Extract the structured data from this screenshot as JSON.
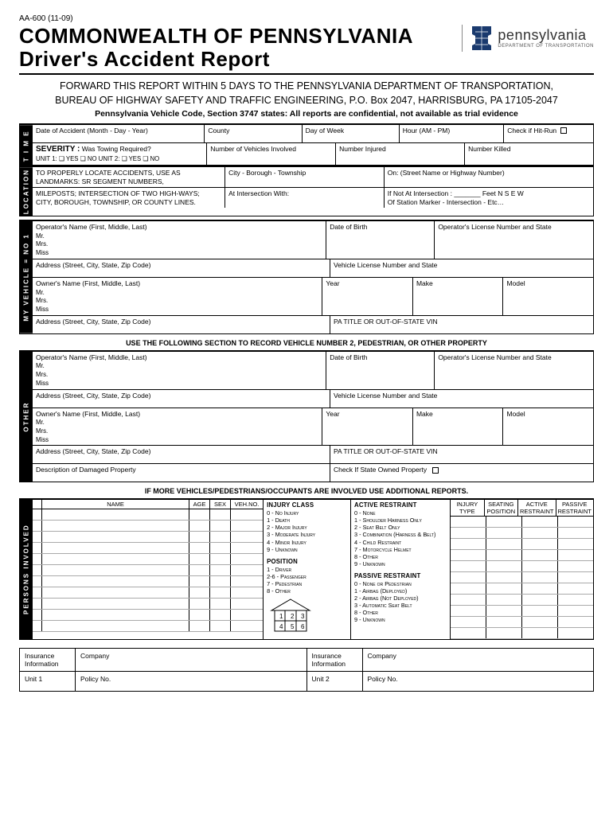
{
  "form_id": "AA-600 (11-09)",
  "title_line1": "COMMONWEALTH OF PENNSYLVANIA",
  "title_line2": "Driver's Accident Report",
  "logo": {
    "state": "pennsylvania",
    "dept": "DEPARTMENT OF TRANSPORTATION"
  },
  "forward_line1": "FORWARD THIS REPORT WITHIN 5 DAYS TO THE PENNSYLVANIA DEPARTMENT OF TRANSPORTATION,",
  "forward_line2": "BUREAU OF HIGHWAY SAFETY AND TRAFFIC ENGINEERING, P.O. Box 2047, HARRISBURG, PA 17105-2047",
  "code_note": "Pennsylvania Vehicle Code, Section 3747 states: All reports are confidential, not available as trial evidence",
  "sidelabels": {
    "time": "T I M E",
    "location": "LOCATION",
    "vehicle1": "MY VEHICLE = NO 1",
    "other": "OTHER",
    "persons": "PERSONS INVOLVED"
  },
  "time": {
    "date": "Date of Accident (Month - Day - Year)",
    "county": "County",
    "dow": "Day of Week",
    "hour": "Hour (AM - PM)",
    "hitrun": "Check if Hit-Run",
    "severity_label": "SEVERITY :",
    "severity_q": "Was Towing Required?",
    "unit_line": "UNIT 1:  ❏ YES  ❏ NO   UNIT 2:  ❏ YES  ❏ NO",
    "num_veh": "Number of Vehicles Involved",
    "num_inj": "Number Injured",
    "num_kill": "Number Killed"
  },
  "location": {
    "left1": "TO PROPERLY LOCATE ACCIDENTS, USE AS",
    "left2": "LANDMARKS: SR SEGMENT NUMBERS,",
    "left3": "MILEPOSTS; INTERSECTION OF TWO HIGH-WAYS;",
    "left4": "CITY, BOROUGH, TOWNSHIP, OR COUNTY LINES.",
    "city": "City - Borough - Township",
    "on": "On: (Street Name or Highway Number)",
    "atint": "At Intersection With:",
    "ifnot": "If Not At Intersection : _______ Feet     N  S  E  W",
    "ofstation": "Of Station Marker - Intersection - Etc…"
  },
  "veh": {
    "opname": "Operator's Name (First, Middle, Last)",
    "titles": "Mr.\nMrs.\nMiss",
    "dob": "Date of Birth",
    "oplic": "Operator's License Number and State",
    "addr": "Address (Street, City, State, Zip Code)",
    "vlic": "Vehicle License Number and State",
    "owname": "Owner's Name (First, Middle, Last)",
    "year": "Year",
    "make": "Make",
    "model": "Model",
    "patitle": "PA TITLE OR OUT-OF-STATE VIN"
  },
  "other_extra": {
    "desc": "Description of Damaged Property",
    "stateowned": "Check If State Owned Property"
  },
  "section_note_1": "USE THE FOLLOWING SECTION TO RECORD VEHICLE NUMBER 2, PEDESTRIAN, OR OTHER PROPERTY",
  "section_note_2": "IF MORE VEHICLES/PEDESTRIANS/OCCUPANTS ARE INVOLVED USE ADDITIONAL REPORTS.",
  "persons_head": {
    "name": "NAME",
    "age": "AGE",
    "sex": "SEX",
    "vehno": "VEH.NO.",
    "injtype": "INJURY TYPE",
    "seatpos": "SEATING POSITION",
    "actres": "ACTIVE RESTRAINT",
    "pasres": "PASSIVE RESTRAINT"
  },
  "ref": {
    "injury_h": "INJURY CLASS",
    "injury": [
      "0 - No Injury",
      "1 - Death",
      "2 - Major Injury",
      "3 - Moderate Injury",
      "4 - Minor Injury",
      "9 - Unknown"
    ],
    "position_h": "POSITION",
    "position": [
      "1 - Driver",
      "2-6 - Passenger",
      "7 - Pedestrian",
      "8 - Other"
    ],
    "active_h": "ACTIVE RESTRAINT",
    "active": [
      "0 - None",
      "1 - Shoulder Harness Only",
      "2 - Seat Belt Only",
      "3 - Combination (Harness & Belt)",
      "4 - Child Restraint",
      "7 - Motorcycle Helmet",
      "8 - Other",
      "9 - Unknown"
    ],
    "passive_h": "PASSIVE RESTRAINT",
    "passive": [
      "0 - None or Pedestrian",
      "1 - Airbag (Deployed)",
      "2 - Airbag (Not Deployed)",
      "3 - Automatic Seat Belt",
      "8 - Other",
      "9 - Unknown"
    ]
  },
  "seat_grid": [
    "1",
    "2",
    "3",
    "4",
    "5",
    "6"
  ],
  "insurance": {
    "info": "Insurance Information",
    "company": "Company",
    "unit1": "Unit 1",
    "unit2": "Unit 2",
    "policy": "Policy No."
  }
}
